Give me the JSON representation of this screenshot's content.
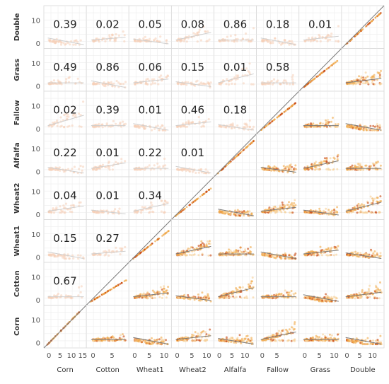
{
  "chart_data": {
    "type": "scatter",
    "variables": [
      "Corn",
      "Cotton",
      "Wheat1",
      "Wheat2",
      "Alfalfa",
      "Fallow",
      "Grass",
      "Double"
    ],
    "row_variables": [
      "Double",
      "Grass",
      "Fallow",
      "Alfalfa",
      "Wheat2",
      "Wheat1",
      "Cotton",
      "Corn"
    ],
    "correlations": [
      {
        "row": "Double",
        "col": "Corn",
        "value": "0.39"
      },
      {
        "row": "Double",
        "col": "Cotton",
        "value": "0.02"
      },
      {
        "row": "Double",
        "col": "Wheat1",
        "value": "0.05"
      },
      {
        "row": "Double",
        "col": "Wheat2",
        "value": "0.08"
      },
      {
        "row": "Double",
        "col": "Alfalfa",
        "value": "0.86"
      },
      {
        "row": "Double",
        "col": "Fallow",
        "value": "0.18"
      },
      {
        "row": "Double",
        "col": "Grass",
        "value": "0.01"
      },
      {
        "row": "Grass",
        "col": "Corn",
        "value": "0.49"
      },
      {
        "row": "Grass",
        "col": "Cotton",
        "value": "0.86"
      },
      {
        "row": "Grass",
        "col": "Wheat1",
        "value": "0.06"
      },
      {
        "row": "Grass",
        "col": "Wheat2",
        "value": "0.15"
      },
      {
        "row": "Grass",
        "col": "Alfalfa",
        "value": "0.01"
      },
      {
        "row": "Grass",
        "col": "Fallow",
        "value": "0.58"
      },
      {
        "row": "Fallow",
        "col": "Corn",
        "value": "0.02"
      },
      {
        "row": "Fallow",
        "col": "Cotton",
        "value": "0.39"
      },
      {
        "row": "Fallow",
        "col": "Wheat1",
        "value": "0.01"
      },
      {
        "row": "Fallow",
        "col": "Wheat2",
        "value": "0.46"
      },
      {
        "row": "Fallow",
        "col": "Alfalfa",
        "value": "0.18"
      },
      {
        "row": "Alfalfa",
        "col": "Corn",
        "value": "0.22"
      },
      {
        "row": "Alfalfa",
        "col": "Cotton",
        "value": "0.01"
      },
      {
        "row": "Alfalfa",
        "col": "Wheat1",
        "value": "0.22"
      },
      {
        "row": "Alfalfa",
        "col": "Wheat2",
        "value": "0.01"
      },
      {
        "row": "Wheat2",
        "col": "Corn",
        "value": "0.04"
      },
      {
        "row": "Wheat2",
        "col": "Cotton",
        "value": "0.01"
      },
      {
        "row": "Wheat2",
        "col": "Wheat1",
        "value": "0.34"
      },
      {
        "row": "Wheat1",
        "col": "Corn",
        "value": "0.15"
      },
      {
        "row": "Wheat1",
        "col": "Cotton",
        "value": "0.27"
      },
      {
        "row": "Cotton",
        "col": "Corn",
        "value": "0.67"
      }
    ],
    "y_axis": {
      "range": [
        0,
        14
      ],
      "ticks": [
        "0",
        "10"
      ]
    },
    "x_axes": [
      {
        "variable": "Corn",
        "range": [
          -1,
          16
        ],
        "ticks": [
          "0",
          "5",
          "10",
          "15"
        ]
      },
      {
        "variable": "Cotton",
        "range": [
          -1,
          9
        ],
        "ticks": [
          "0",
          "5"
        ]
      },
      {
        "variable": "Wheat1",
        "range": [
          -1,
          12
        ],
        "ticks": [
          "0",
          "5",
          "10"
        ]
      },
      {
        "variable": "Wheat2",
        "range": [
          -1,
          12
        ],
        "ticks": [
          "0",
          "5",
          "10"
        ]
      },
      {
        "variable": "Alfalfa",
        "range": [
          -1,
          14
        ],
        "ticks": [
          "0",
          "5",
          "10"
        ]
      },
      {
        "variable": "Fallow",
        "range": [
          -1,
          12
        ],
        "ticks": [
          "0",
          "5"
        ]
      },
      {
        "variable": "Grass",
        "range": [
          -1,
          12
        ],
        "ticks": [
          "0",
          "5",
          "10"
        ]
      },
      {
        "variable": "Double",
        "range": [
          -1,
          14
        ],
        "ticks": [
          "0",
          "5",
          "10"
        ]
      }
    ],
    "grid": true,
    "legend": "none",
    "colors": {
      "point_light": "#f6cf95",
      "point_mid": "#f0a848",
      "point_dark": "#c8440c",
      "point_faint": "#f6d0b8",
      "trend_line": "#7a7a7a",
      "grid": "#ededed",
      "panel_border": "#d8d8d8"
    }
  }
}
